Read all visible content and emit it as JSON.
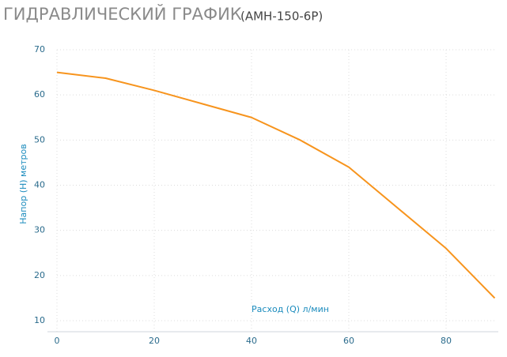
{
  "chart_data": {
    "type": "line",
    "title": "ГИДРАВЛИЧЕСКИЙ ГРАФИК",
    "subtitle": "(АМН-150-6Р)",
    "x_label": "Расход (Q) л/мин",
    "y_label": "Напор (H) метров",
    "x": [
      0,
      10,
      20,
      30,
      40,
      50,
      60,
      70,
      80,
      90
    ],
    "series": [
      {
        "name": "АМН-150-6Р",
        "color": "#f7941d",
        "values": [
          65,
          63.7,
          61,
          58,
          55,
          50,
          44,
          35,
          26,
          15
        ]
      }
    ],
    "xlim": [
      0,
      90
    ],
    "xticks": [
      0,
      20,
      40,
      60,
      80
    ],
    "ylim": [
      10,
      70
    ],
    "yticks": [
      10,
      20,
      30,
      40,
      50,
      60,
      70
    ],
    "grid": true
  }
}
